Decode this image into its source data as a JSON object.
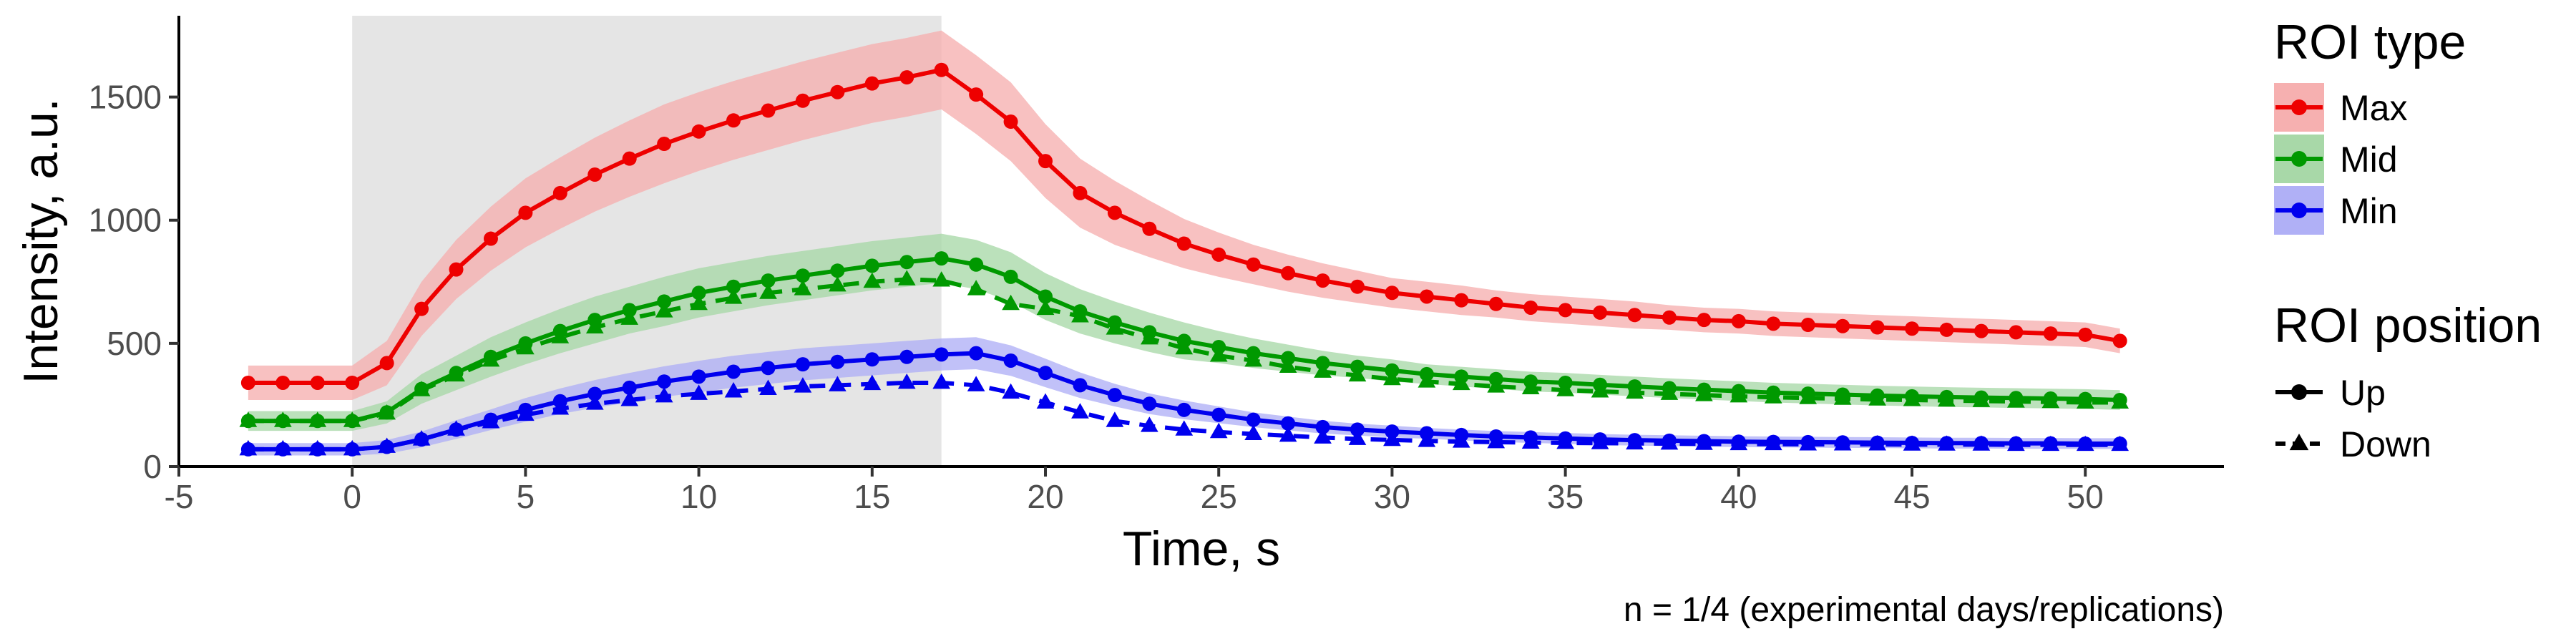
{
  "chart_data": {
    "type": "line",
    "xlabel": "Time, s",
    "ylabel": "Intensity, a.u.",
    "xlim": [
      -5,
      54
    ],
    "ylim": [
      0,
      1830
    ],
    "x_ticks": [
      -5,
      0,
      5,
      10,
      15,
      20,
      25,
      30,
      35,
      40,
      45,
      50
    ],
    "y_ticks": [
      0,
      500,
      1000,
      1500
    ],
    "grid": false,
    "shaded_interval": [
      0,
      17
    ],
    "shaded_color": "#e5e5e5",
    "caption": "n = 1/4 (experimental days/replications)",
    "x": [
      -3,
      -2,
      -1,
      0,
      1,
      2,
      3,
      4,
      5,
      6,
      7,
      8,
      9,
      10,
      11,
      12,
      13,
      14,
      15,
      16,
      17,
      18,
      19,
      20,
      21,
      22,
      23,
      24,
      25,
      26,
      27,
      28,
      29,
      30,
      31,
      32,
      33,
      34,
      35,
      36,
      37,
      38,
      39,
      40,
      41,
      42,
      43,
      44,
      45,
      46,
      47,
      48,
      49,
      50,
      51
    ],
    "series": [
      {
        "roi_type": "Max",
        "position": "Up",
        "color": "#ee0000",
        "marker": "circle",
        "dash": "solid",
        "values": [
          340,
          340,
          340,
          340,
          420,
          640,
          800,
          925,
          1030,
          1110,
          1185,
          1250,
          1310,
          1360,
          1405,
          1445,
          1485,
          1520,
          1555,
          1580,
          1610,
          1510,
          1400,
          1240,
          1110,
          1030,
          965,
          905,
          860,
          820,
          785,
          755,
          730,
          705,
          690,
          675,
          660,
          645,
          635,
          625,
          615,
          605,
          595,
          590,
          580,
          575,
          570,
          565,
          560,
          555,
          550,
          545,
          540,
          535,
          510
        ],
        "band": [
          70,
          70,
          70,
          70,
          90,
          110,
          120,
          130,
          140,
          145,
          150,
          155,
          160,
          160,
          160,
          160,
          160,
          160,
          160,
          160,
          160,
          160,
          160,
          150,
          140,
          130,
          115,
          100,
          90,
          80,
          75,
          70,
          65,
          60,
          60,
          60,
          55,
          55,
          55,
          55,
          55,
          50,
          50,
          50,
          50,
          50,
          50,
          50,
          50,
          50,
          50,
          50,
          50,
          50,
          50
        ]
      },
      {
        "roi_type": "Mid",
        "position": "Up",
        "color": "#009900",
        "marker": "circle",
        "dash": "solid",
        "values": [
          185,
          185,
          185,
          185,
          220,
          315,
          380,
          445,
          500,
          550,
          595,
          635,
          670,
          705,
          730,
          755,
          775,
          795,
          815,
          830,
          845,
          820,
          770,
          690,
          630,
          585,
          545,
          510,
          485,
          460,
          440,
          420,
          405,
          390,
          375,
          365,
          355,
          345,
          340,
          332,
          325,
          318,
          312,
          306,
          300,
          296,
          292,
          288,
          285,
          282,
          280,
          278,
          276,
          274,
          270
        ],
        "band": [
          40,
          40,
          40,
          40,
          45,
          60,
          70,
          80,
          85,
          90,
          95,
          95,
          100,
          100,
          100,
          100,
          100,
          100,
          100,
          100,
          100,
          100,
          100,
          95,
          90,
          85,
          80,
          75,
          65,
          60,
          55,
          50,
          45,
          45,
          40,
          40,
          40,
          40,
          40,
          40,
          40,
          40,
          40,
          40,
          40,
          40,
          40,
          40,
          40,
          40,
          40,
          40,
          40,
          40,
          40
        ]
      },
      {
        "roi_type": "Mid",
        "position": "Down",
        "color": "#009900",
        "marker": "triangle",
        "dash": "dashed",
        "values": [
          185,
          185,
          185,
          185,
          215,
          310,
          370,
          430,
          480,
          525,
          565,
          600,
          630,
          660,
          685,
          705,
          720,
          735,
          750,
          760,
          755,
          720,
          660,
          640,
          610,
          560,
          520,
          480,
          450,
          430,
          405,
          385,
          370,
          355,
          345,
          335,
          325,
          318,
          310,
          305,
          300,
          295,
          290,
          285,
          281,
          278,
          275,
          272,
          270,
          268,
          266,
          264,
          262,
          260,
          260
        ]
      },
      {
        "roi_type": "Min",
        "position": "Up",
        "color": "#0000ee",
        "marker": "circle",
        "dash": "solid",
        "values": [
          70,
          70,
          70,
          70,
          80,
          110,
          150,
          190,
          230,
          265,
          295,
          320,
          345,
          365,
          385,
          400,
          415,
          425,
          435,
          445,
          455,
          460,
          430,
          380,
          330,
          290,
          255,
          230,
          210,
          190,
          175,
          160,
          150,
          142,
          135,
          128,
          122,
          118,
          114,
          110,
          107,
          105,
          103,
          101,
          100,
          99,
          98,
          97,
          96,
          95,
          95,
          94,
          94,
          93,
          93
        ],
        "band": [
          25,
          25,
          25,
          25,
          28,
          32,
          38,
          42,
          48,
          52,
          56,
          60,
          62,
          64,
          65,
          65,
          65,
          65,
          65,
          65,
          65,
          65,
          62,
          58,
          52,
          46,
          42,
          38,
          34,
          30,
          28,
          26,
          24,
          24,
          22,
          22,
          22,
          22,
          22,
          22,
          22,
          22,
          22,
          22,
          22,
          22,
          22,
          22,
          22,
          22,
          22,
          22,
          22,
          22,
          22
        ]
      },
      {
        "roi_type": "Min",
        "position": "Down",
        "color": "#0000ee",
        "marker": "triangle",
        "dash": "dashed",
        "values": [
          70,
          70,
          70,
          70,
          80,
          110,
          150,
          180,
          210,
          235,
          255,
          270,
          285,
          295,
          305,
          315,
          325,
          330,
          335,
          340,
          340,
          330,
          300,
          260,
          220,
          185,
          165,
          150,
          140,
          132,
          125,
          118,
          112,
          108,
          104,
          101,
          99,
          97,
          96,
          95,
          94,
          93,
          92,
          91,
          91,
          90,
          90,
          90,
          89,
          89,
          89,
          88,
          88,
          88,
          88
        ]
      }
    ],
    "legend": {
      "placement": "right",
      "roi_type_title": "ROI type",
      "roi_type_items": [
        {
          "label": "Max",
          "color": "#ee0000",
          "fill": "#f6b0b0"
        },
        {
          "label": "Mid",
          "color": "#009900",
          "fill": "#a8d8a8"
        },
        {
          "label": "Min",
          "color": "#0000ee",
          "fill": "#b0b0f6"
        }
      ],
      "position_title": "ROI position",
      "position_items": [
        {
          "label": "Up",
          "marker": "circle",
          "dash": "solid"
        },
        {
          "label": "Down",
          "marker": "triangle",
          "dash": "dashed"
        }
      ]
    }
  }
}
